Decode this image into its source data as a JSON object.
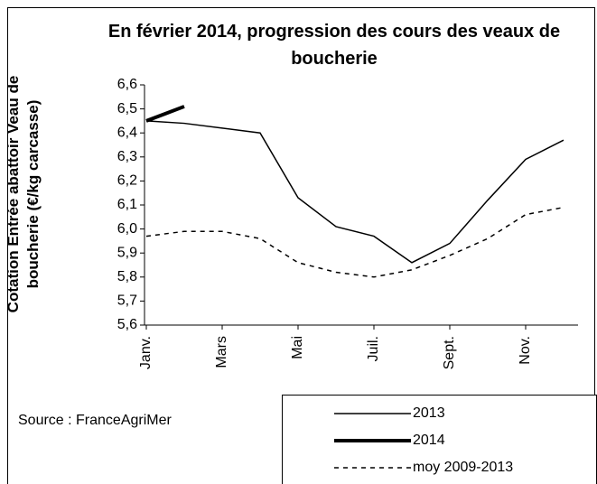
{
  "chart_data": {
    "type": "line",
    "title": "En février 2014,  progression des cours des veaux de boucherie",
    "y_label": "Cotation Entrée abattoir Veau de boucherie (€/kg carcasse)",
    "source": "Source : FranceAgriMer",
    "categories": [
      "Janv.",
      null,
      "Mars",
      null,
      "Mai",
      null,
      "Juil.",
      null,
      "Sept.",
      null,
      "Nov.",
      null
    ],
    "series": [
      {
        "name": "2013",
        "color": "#000000",
        "width": 1.5,
        "dash": "none",
        "values": [
          6.45,
          6.44,
          6.42,
          6.4,
          6.13,
          6.01,
          5.97,
          5.86,
          5.94,
          6.12,
          6.29,
          6.37
        ]
      },
      {
        "name": "2014",
        "color": "#000000",
        "width": 4,
        "dash": "none",
        "values": [
          6.45,
          6.51,
          null,
          null,
          null,
          null,
          null,
          null,
          null,
          null,
          null,
          null
        ]
      },
      {
        "name": "moy 2009-2013",
        "color": "#000000",
        "width": 1.5,
        "dash": "5,5",
        "values": [
          5.97,
          5.99,
          5.99,
          5.96,
          5.86,
          5.82,
          5.8,
          5.83,
          5.89,
          5.96,
          6.06,
          6.09
        ]
      }
    ],
    "ylim": [
      5.6,
      6.6
    ],
    "yticks": [
      {
        "value": 5.6,
        "label": "5,6"
      },
      {
        "value": 5.7,
        "label": "5,7"
      },
      {
        "value": 5.8,
        "label": "5,8"
      },
      {
        "value": 5.9,
        "label": "5,9"
      },
      {
        "value": 6.0,
        "label": "6,0"
      },
      {
        "value": 6.1,
        "label": "6,1"
      },
      {
        "value": 6.2,
        "label": "6,2"
      },
      {
        "value": 6.3,
        "label": "6,3"
      },
      {
        "value": 6.4,
        "label": "6,4"
      },
      {
        "value": 6.5,
        "label": "6,5"
      },
      {
        "value": 6.6,
        "label": "6,6"
      }
    ],
    "grid": false
  }
}
